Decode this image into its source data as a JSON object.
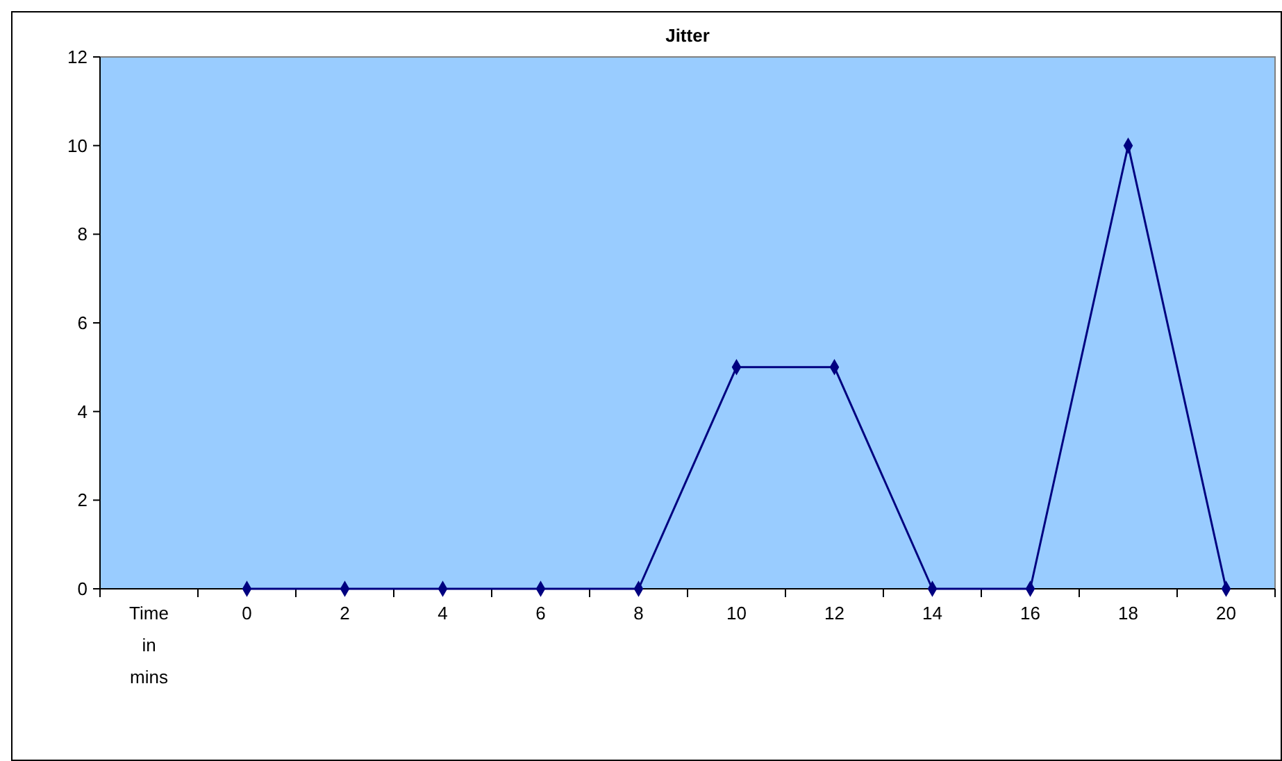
{
  "chart_data": {
    "type": "line",
    "title": "Jitter",
    "categories": [
      "Time in mins",
      "0",
      "2",
      "4",
      "6",
      "8",
      "10",
      "12",
      "14",
      "16",
      "18",
      "20"
    ],
    "series": [
      {
        "color": "#000080",
        "values": [
          null,
          0,
          0,
          0,
          0,
          0,
          5,
          5,
          0,
          0,
          10,
          0
        ]
      }
    ],
    "ylim": [
      0,
      12
    ],
    "yticks": [
      0,
      2,
      4,
      6,
      8,
      10,
      12
    ],
    "marker": "diamond",
    "line_style": "solid"
  }
}
